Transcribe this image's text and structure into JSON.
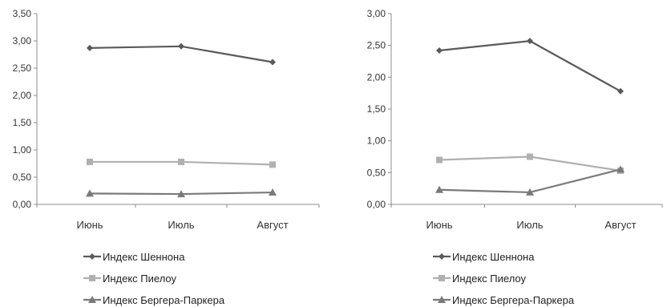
{
  "chart_data": [
    {
      "type": "line",
      "categories": [
        "Июнь",
        "Июль",
        "Август"
      ],
      "ylim": [
        0,
        3.5
      ],
      "yticks": [
        "0,00",
        "0,50",
        "1,00",
        "1,50",
        "2,00",
        "2,50",
        "3,00",
        "3,50"
      ],
      "grid": false,
      "legend_position": "bottom",
      "series": [
        {
          "name": "Индекс Шеннона",
          "values": [
            2.87,
            2.9,
            2.61
          ],
          "color": "#5a5a5a",
          "marker": "diamond"
        },
        {
          "name": "Индекс Пиелоу",
          "values": [
            0.78,
            0.78,
            0.73
          ],
          "color": "#b0b0b0",
          "marker": "square"
        },
        {
          "name": "Индекс Бергера-Паркера",
          "values": [
            0.2,
            0.19,
            0.22
          ],
          "color": "#7a7a7a",
          "marker": "triangle"
        }
      ]
    },
    {
      "type": "line",
      "categories": [
        "Июнь",
        "Июль",
        "Август"
      ],
      "ylim": [
        0,
        3.0
      ],
      "yticks": [
        "0,00",
        "0,50",
        "1,00",
        "1,50",
        "2,00",
        "2,50",
        "3,00"
      ],
      "grid": false,
      "legend_position": "bottom",
      "series": [
        {
          "name": "Индекс Шеннона",
          "values": [
            2.42,
            2.57,
            1.78
          ],
          "color": "#5a5a5a",
          "marker": "diamond"
        },
        {
          "name": "Индекс Пиелоу",
          "values": [
            0.7,
            0.75,
            0.53
          ],
          "color": "#b0b0b0",
          "marker": "square"
        },
        {
          "name": "Индекс Бергера-Паркера",
          "values": [
            0.23,
            0.19,
            0.55
          ],
          "color": "#7a7a7a",
          "marker": "triangle"
        }
      ]
    }
  ]
}
